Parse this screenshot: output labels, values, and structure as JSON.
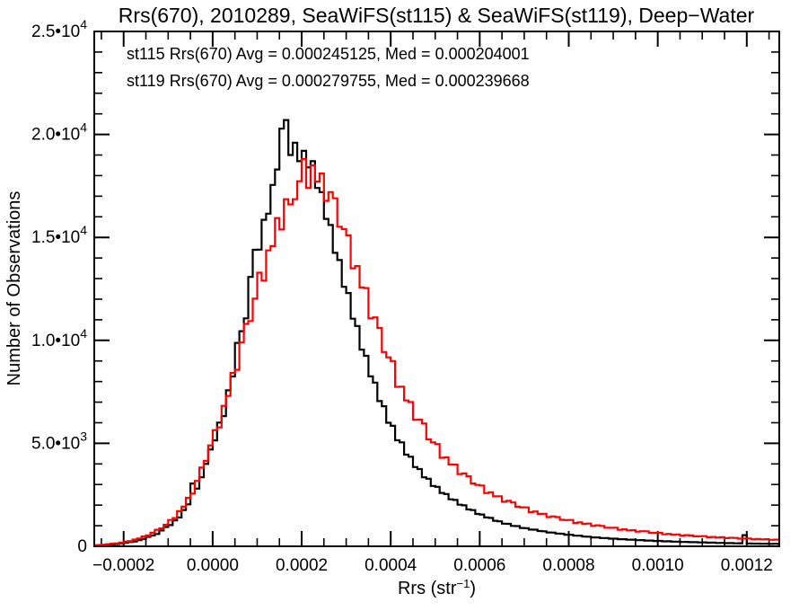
{
  "figure": {
    "title": "Rrs(670), 2010289, SeaWiFS(st115) & SeaWiFS(st119), Deep−Water",
    "legend": [
      {
        "label": "st115 Rrs(670) Avg = 0.000245125, Med = 0.000204001",
        "color": "#000000"
      },
      {
        "label": "st119 Rrs(670) Avg = 0.000279755, Med = 0.000239668",
        "color": "#ff0000"
      }
    ],
    "background_color": "#ffffff",
    "frame_color": "#000000"
  },
  "chart_data": {
    "type": "bar",
    "subtype": "step-histogram",
    "title": "Rrs(670), 2010289, SeaWiFS(st115) & SeaWiFS(st119), Deep−Water",
    "xlabel": "Rrs (str⁻¹)",
    "xlabel_parts": {
      "pre": "Rrs (str",
      "sup": "−1",
      "post": ")"
    },
    "ylabel": "Number of Observations",
    "xlim": [
      -0.000266,
      0.001273
    ],
    "ylim": [
      0,
      25000
    ],
    "grid": false,
    "legend_position": "top-left-inside",
    "x_ticks": {
      "majors": [
        {
          "v": -0.0002,
          "label": "−0.0002"
        },
        {
          "v": 0.0,
          "label": "0.0000"
        },
        {
          "v": 0.0002,
          "label": "0.0002"
        },
        {
          "v": 0.0004,
          "label": "0.0004"
        },
        {
          "v": 0.0006,
          "label": "0.0006"
        },
        {
          "v": 0.0008,
          "label": "0.0008"
        },
        {
          "v": 0.001,
          "label": "0.0010"
        },
        {
          "v": 0.0012,
          "label": "0.0012"
        }
      ],
      "minor_step": 5e-05
    },
    "y_ticks": {
      "majors": [
        {
          "v": 0,
          "m": "0",
          "e": ""
        },
        {
          "v": 5000,
          "m": "5.0•10",
          "e": "3"
        },
        {
          "v": 10000,
          "m": "1.0•10",
          "e": "4"
        },
        {
          "v": 15000,
          "m": "1.5•10",
          "e": "4"
        },
        {
          "v": 20000,
          "m": "2.0•10",
          "e": "4"
        },
        {
          "v": 25000,
          "m": "2.5•10",
          "e": "4"
        }
      ],
      "minor_step": 1000
    },
    "bin_start": -0.00027,
    "bin_width": 1e-05,
    "stats": {
      "st115": {
        "avg": 0.000245125,
        "med": 0.000204001
      },
      "st119": {
        "avg": 0.000279755,
        "med": 0.000239668
      }
    },
    "series": [
      {
        "name": "st115",
        "color": "#000000",
        "counts": [
          25,
          36,
          54,
          66,
          78,
          108,
          143,
          164,
          205,
          233,
          303,
          357,
          460,
          525,
          599,
          770,
          936,
          1029,
          1263,
          1399,
          1763,
          2037,
          3050,
          2800,
          3349,
          4000,
          4700,
          5145,
          6010,
          6322,
          7575,
          8245,
          9880,
          10445,
          11068,
          13081,
          14400,
          14406,
          15857,
          16150,
          17550,
          18300,
          20280,
          20700,
          19000,
          19600,
          18700,
          19200,
          18400,
          18700,
          17400,
          17200,
          15900,
          15600,
          14250,
          13900,
          12600,
          12300,
          11050,
          10700,
          9550,
          9250,
          8250,
          7950,
          7050,
          6800,
          6000,
          5850,
          5150,
          5050,
          4450,
          4350,
          3850,
          3750,
          3350,
          3280,
          2930,
          2890,
          2590,
          2540,
          2280,
          2250,
          2020,
          1990,
          1790,
          1760,
          1570,
          1545,
          1400,
          1380,
          1240,
          1215,
          1100,
          1090,
          990,
          980,
          890,
          880,
          810,
          805,
          740,
          730,
          670,
          668,
          618,
          612,
          562,
          558,
          516,
          513,
          473,
          468,
          432,
          432,
          400,
          400,
          370,
          370,
          344,
          346,
          320,
          321,
          298,
          300,
          278,
          280,
          258,
          261,
          242,
          244,
          226,
          228,
          211,
          215,
          199,
          202,
          187,
          190,
          175,
          178,
          163,
          166,
          152,
          157,
          144,
          148,
          540,
          141,
          130,
          133,
          124,
          126,
          117,
          120,
          112
        ]
      },
      {
        "name": "st119",
        "color": "#ff0000",
        "counts": [
          44,
          62,
          77,
          102,
          126,
          144,
          183,
          231,
          254,
          326,
          380,
          476,
          526,
          660,
          801,
          868,
          1045,
          1277,
          1371,
          1705,
          1924,
          2357,
          2556,
          3175,
          3820,
          4150,
          4900,
          5642,
          5771,
          6818,
          7301,
          8420,
          8568,
          9894,
          10800,
          10937,
          12025,
          13286,
          12900,
          14367,
          14578,
          15939,
          15384,
          16856,
          16600,
          16854,
          17725,
          18800,
          17400,
          18500,
          17714,
          18100,
          16776,
          17200,
          16900,
          15520,
          15400,
          15100,
          13500,
          13610,
          12569,
          12540,
          11064,
          11118,
          10600,
          9433,
          9175,
          8996,
          7743,
          7752,
          7081,
          7004,
          6144,
          6146,
          5959,
          5190,
          5050,
          4966,
          4299,
          4318,
          3969,
          3966,
          3504,
          3538,
          3400,
          3050,
          2981,
          2954,
          2584,
          2626,
          2430,
          2431,
          2165,
          2208,
          2130,
          1925,
          1895,
          1888,
          1658,
          1692,
          1573,
          1581,
          1416,
          1454,
          1420,
          1285,
          1275,
          1279,
          1131,
          1162,
          1088,
          1102,
          992,
          1019,
          990,
          903,
          897,
          902,
          799,
          823,
          773,
          786,
          709,
          731,
          730,
          653,
          651,
          656,
          582,
          601,
          565,
          576,
          521,
          540,
          530,
          486,
          487,
          493,
          439,
          455,
          429,
          439,
          398,
          413,
          405,
          373,
          375,
          381,
          340,
          354,
          335,
          344,
          313,
          324,
          326
        ]
      }
    ]
  }
}
